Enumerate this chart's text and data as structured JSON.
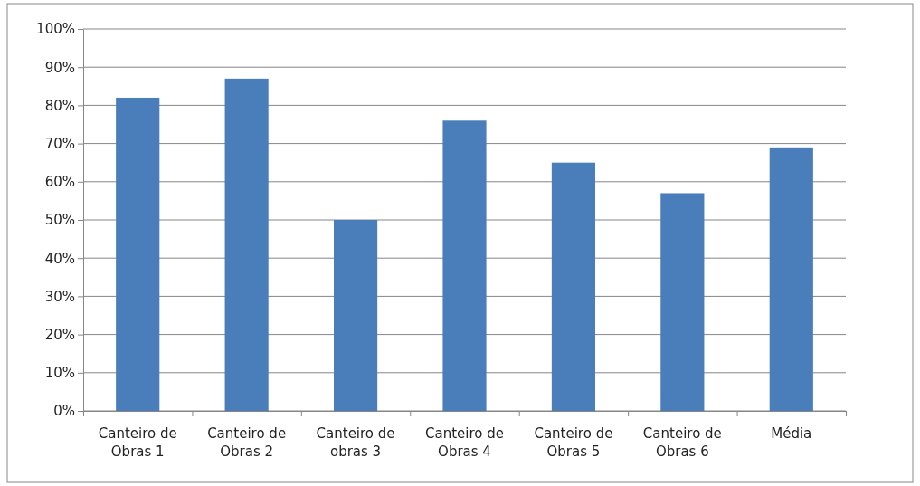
{
  "chart_data": {
    "type": "bar",
    "categories": [
      "Canteiro de Obras 1",
      "Canteiro de Obras 2",
      "Canteiro de obras 3",
      "Canteiro de Obras 4",
      "Canteiro de Obras 5",
      "Canteiro de Obras 6",
      "Média"
    ],
    "values": [
      82,
      87,
      50,
      76,
      65,
      57,
      69
    ],
    "color": "#4a7ebb",
    "ylim": [
      0,
      100
    ],
    "yticks": [
      {
        "value": 0,
        "label": "0%"
      },
      {
        "value": 10,
        "label": "10%"
      },
      {
        "value": 20,
        "label": "20%"
      },
      {
        "value": 30,
        "label": "30%"
      },
      {
        "value": 40,
        "label": "40%"
      },
      {
        "value": 50,
        "label": "50%"
      },
      {
        "value": 60,
        "label": "60%"
      },
      {
        "value": 70,
        "label": "70%"
      },
      {
        "value": 80,
        "label": "80%"
      },
      {
        "value": 90,
        "label": "90%"
      },
      {
        "value": 100,
        "label": "100%"
      }
    ],
    "grid": "y"
  }
}
